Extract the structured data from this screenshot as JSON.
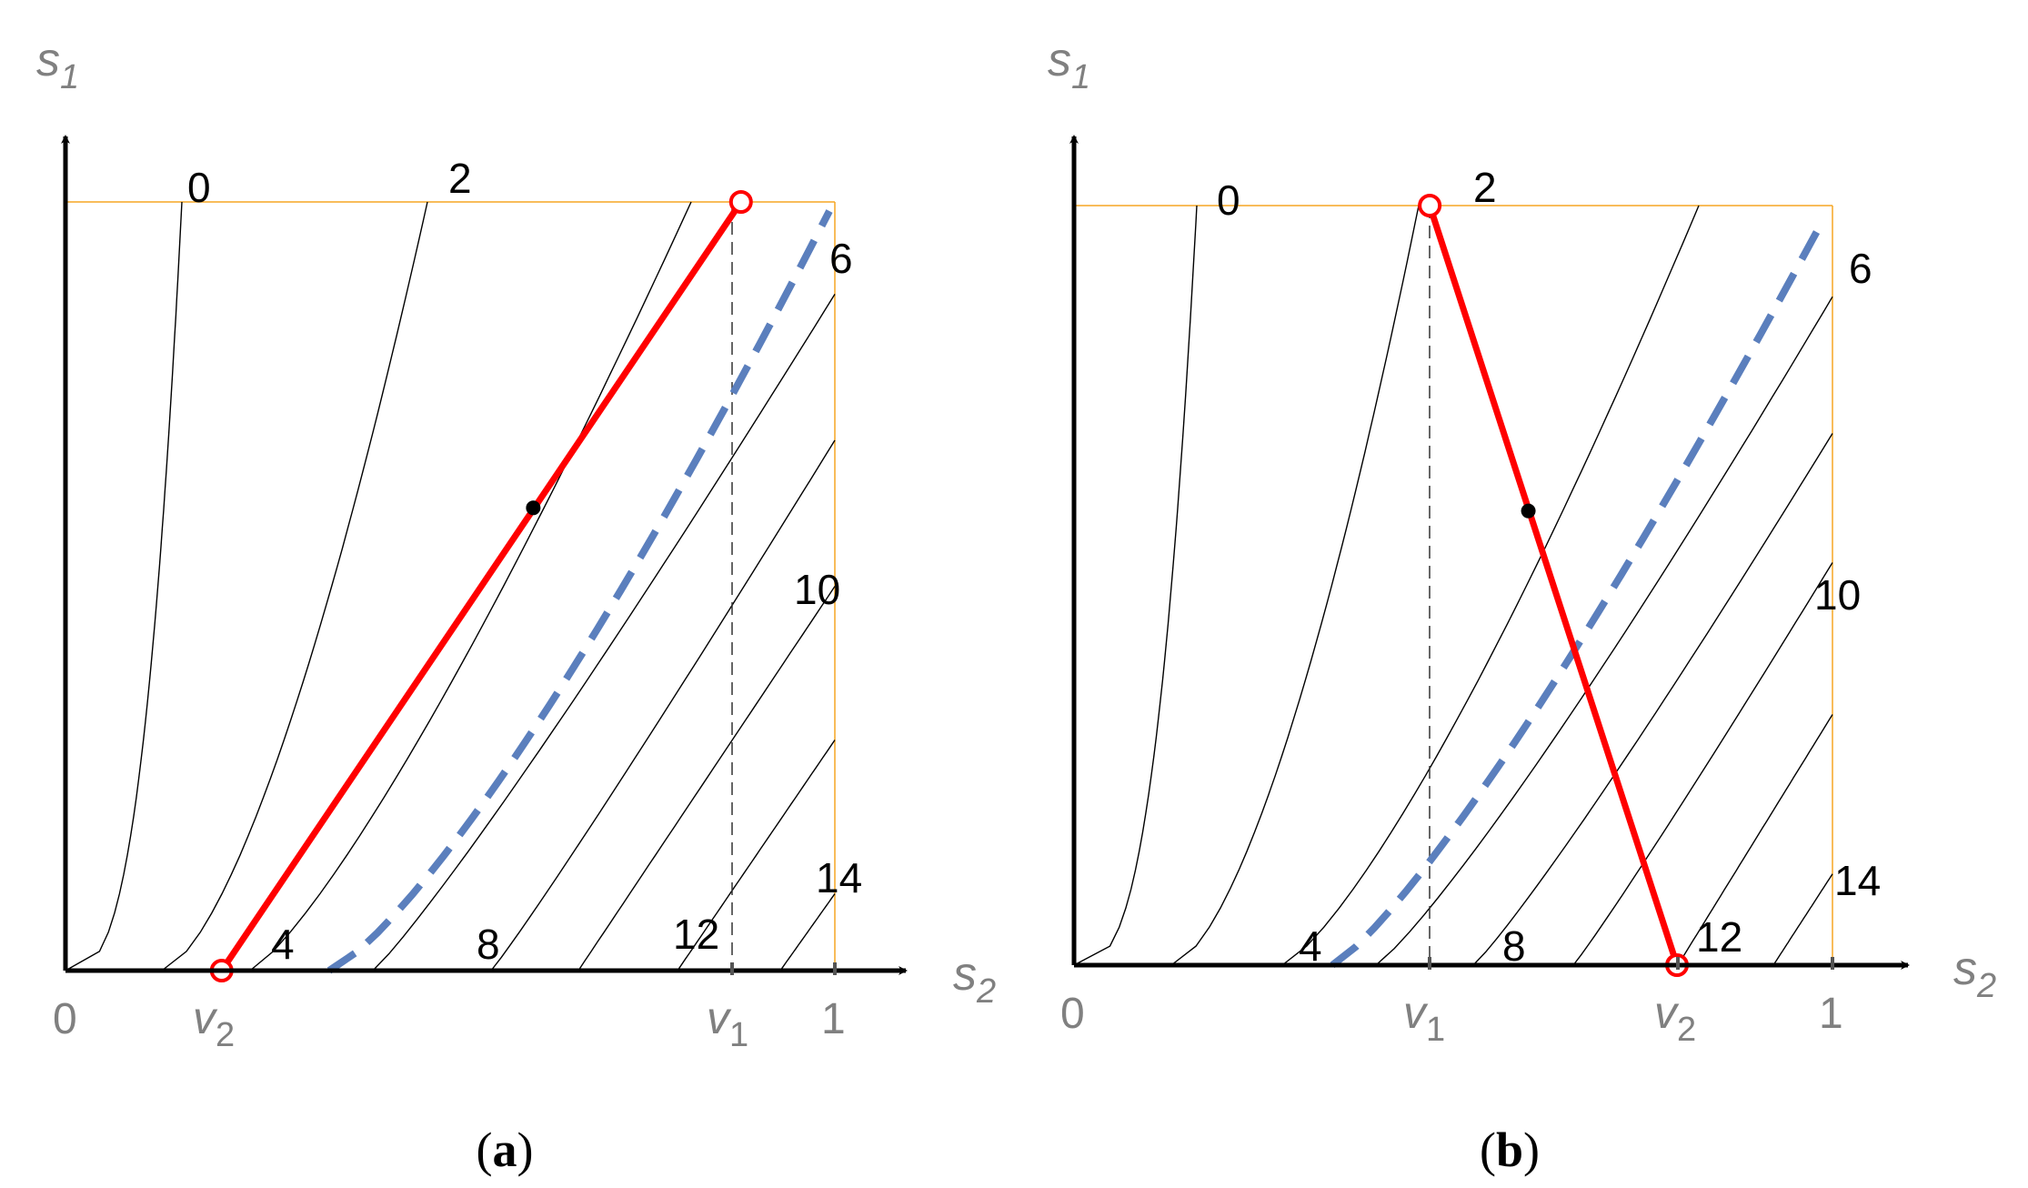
{
  "colors": {
    "axis": "#000000",
    "contour": "#000000",
    "boundary": "#f5a623",
    "segment": "#ff0000",
    "dashed_curve": "#5b7fbd",
    "label_gray": "#808080"
  },
  "panels": [
    {
      "id": "a",
      "caption": {
        "open": "(",
        "letter": "a",
        "close": ")"
      },
      "axes": {
        "y_title": "s",
        "y_sub": "1",
        "x_title": "s",
        "x_sub": "2"
      },
      "ticks": {
        "origin": "0",
        "v2": "v",
        "v2_sub": "2",
        "v1": "v",
        "v1_sub": "1",
        "one": "1"
      },
      "contour_labels": [
        "0",
        "2",
        "4",
        "6",
        "8",
        "10",
        "12",
        "14"
      ],
      "v1_value": 0.878,
      "v2_value": 0.203,
      "tangent_point": [
        0.608,
        0.602
      ],
      "segment": {
        "start": [
          0.203,
          0.0
        ],
        "end": [
          0.878,
          1.0
        ]
      }
    },
    {
      "id": "b",
      "caption": {
        "open": "(",
        "letter": "b",
        "close": ")"
      },
      "axes": {
        "y_title": "s",
        "y_sub": "1",
        "x_title": "s",
        "x_sub": "2"
      },
      "ticks": {
        "origin": "0",
        "v1": "v",
        "v1_sub": "1",
        "v2": "v",
        "v2_sub": "2",
        "one": "1"
      },
      "contour_labels": [
        "0",
        "2",
        "4",
        "6",
        "8",
        "10",
        "12",
        "14"
      ],
      "v1_value": 0.469,
      "v2_value": 0.795,
      "tangent_point": [
        0.599,
        0.598
      ],
      "segment": {
        "start": [
          0.469,
          1.0
        ],
        "end": [
          0.795,
          0.0
        ]
      }
    }
  ]
}
